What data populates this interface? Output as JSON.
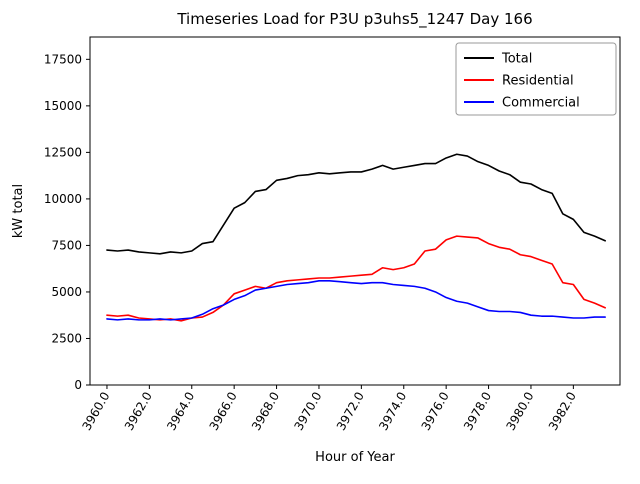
{
  "chart_data": {
    "type": "line",
    "title": "Timeseries Load for P3U p3uhs5_1247  Day 166",
    "xlabel": "Hour of Year",
    "ylabel": "kW total",
    "xlim": [
      3959.2,
      3984.2
    ],
    "ylim": [
      0,
      18700
    ],
    "legend_position": "upper right",
    "grid": false,
    "xticks": {
      "values": [
        3960,
        3962,
        3964,
        3966,
        3968,
        3970,
        3972,
        3974,
        3976,
        3978,
        3980,
        3982
      ],
      "labels": [
        "3960.0",
        "3962.0",
        "3964.0",
        "3966.0",
        "3968.0",
        "3970.0",
        "3972.0",
        "3974.0",
        "3976.0",
        "3978.0",
        "3980.0",
        "3982.0"
      ]
    },
    "yticks": {
      "values": [
        0,
        2500,
        5000,
        7500,
        10000,
        12500,
        15000,
        17500
      ],
      "labels": [
        "0",
        "2500",
        "5000",
        "7500",
        "10000",
        "12500",
        "15000",
        "17500"
      ]
    },
    "x": [
      3960,
      3960.5,
      3961,
      3961.5,
      3962,
      3962.5,
      3963,
      3963.5,
      3964,
      3964.5,
      3965,
      3965.5,
      3966,
      3966.5,
      3967,
      3967.5,
      3968,
      3968.5,
      3969,
      3969.5,
      3970,
      3970.5,
      3971,
      3971.5,
      3972,
      3972.5,
      3973,
      3973.5,
      3974,
      3974.5,
      3975,
      3975.5,
      3976,
      3976.5,
      3977,
      3977.5,
      3978,
      3978.5,
      3979,
      3979.5,
      3980,
      3980.5,
      3981,
      3981.5,
      3982,
      3982.5,
      3983,
      3983.5
    ],
    "series": [
      {
        "name": "Total",
        "color": "#000000",
        "values": [
          7250,
          7200,
          7250,
          7150,
          7100,
          7050,
          7150,
          7100,
          7200,
          7600,
          7700,
          8600,
          9500,
          9800,
          10400,
          10500,
          11000,
          11100,
          11250,
          11300,
          11400,
          11350,
          11400,
          11450,
          11450,
          11600,
          11800,
          11600,
          11700,
          11800,
          11900,
          11900,
          12200,
          12400,
          12300,
          12000,
          11800,
          11500,
          11300,
          10900,
          10800,
          10500,
          10300,
          9200,
          8900,
          8200,
          8000,
          7750
        ]
      },
      {
        "name": "Residential",
        "color": "#ff0000",
        "values": [
          3750,
          3700,
          3750,
          3600,
          3550,
          3500,
          3550,
          3450,
          3600,
          3650,
          3900,
          4300,
          4900,
          5100,
          5300,
          5200,
          5500,
          5600,
          5650,
          5700,
          5750,
          5750,
          5800,
          5850,
          5900,
          5950,
          6300,
          6200,
          6300,
          6500,
          7200,
          7300,
          7800,
          8000,
          7950,
          7900,
          7600,
          7400,
          7300,
          7000,
          6900,
          6700,
          6500,
          5500,
          5400,
          4600,
          4400,
          4150
        ]
      },
      {
        "name": "Commercial",
        "color": "#0000ff",
        "values": [
          3550,
          3500,
          3550,
          3500,
          3500,
          3550,
          3500,
          3550,
          3600,
          3800,
          4100,
          4300,
          4600,
          4800,
          5100,
          5200,
          5300,
          5400,
          5450,
          5500,
          5600,
          5600,
          5550,
          5500,
          5450,
          5500,
          5500,
          5400,
          5350,
          5300,
          5200,
          5000,
          4700,
          4500,
          4400,
          4200,
          4000,
          3950,
          3950,
          3900,
          3750,
          3700,
          3700,
          3650,
          3600,
          3600,
          3650,
          3650
        ]
      }
    ]
  }
}
